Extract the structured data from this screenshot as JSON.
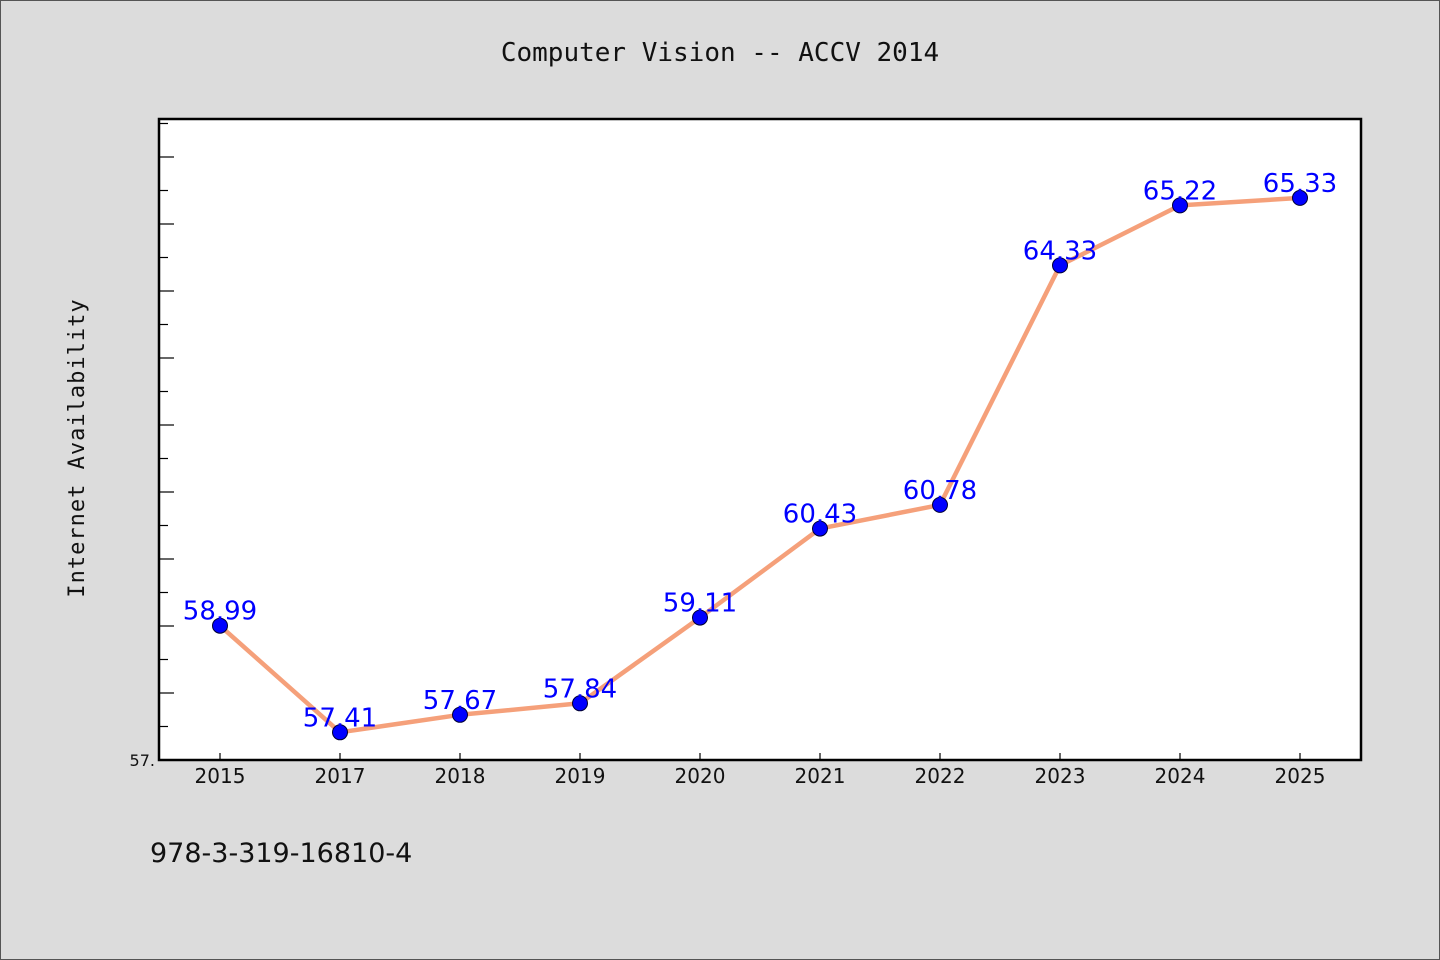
{
  "chart_data": {
    "type": "line",
    "title": "Computer Vision -- ACCV 2014",
    "xlabel": "",
    "ylabel": "Internet Availability",
    "categories": [
      "2015",
      "2017",
      "2018",
      "2019",
      "2020",
      "2021",
      "2022",
      "2023",
      "2024",
      "2025"
    ],
    "values": [
      58.99,
      57.41,
      57.67,
      57.84,
      59.11,
      60.43,
      60.78,
      64.33,
      65.22,
      65.33
    ],
    "data_labels": [
      "58.99",
      "57.41",
      "57.67",
      "57.84",
      "59.11",
      "60.43",
      "60.78",
      "64.33",
      "65.22",
      "65.33"
    ],
    "ylim": [
      57.0,
      66.5
    ],
    "ytick_labels": [
      {
        "value": 57.0,
        "label": "57."
      }
    ],
    "grid": false,
    "legend": "none",
    "line_color": "#f5a07a",
    "marker_color": "#0000ff",
    "label_color": "#0000ff"
  },
  "footnote": "978-3-319-16810-4"
}
